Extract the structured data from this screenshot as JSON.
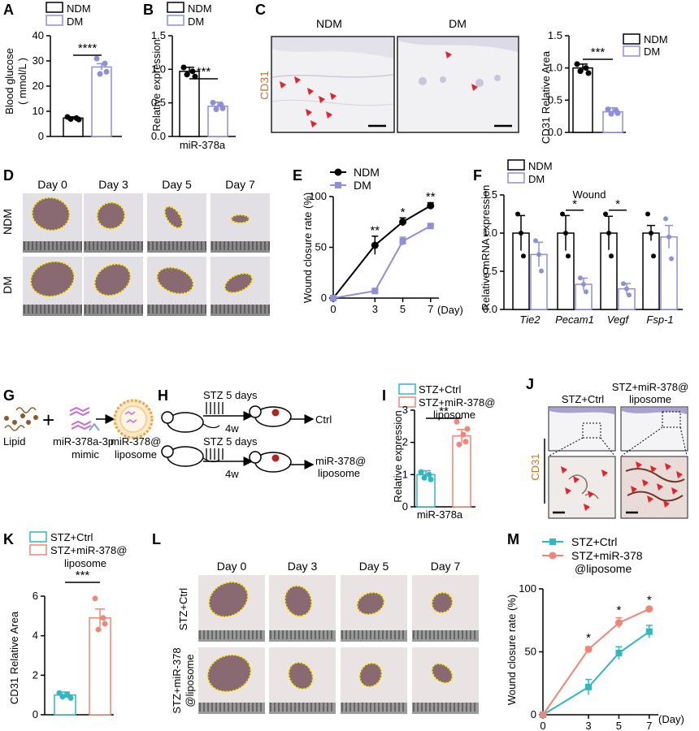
{
  "panels": {
    "A": "A",
    "B": "B",
    "C": "C",
    "D": "D",
    "E": "E",
    "F": "F",
    "G": "G",
    "H": "H",
    "I": "I",
    "J": "J",
    "K": "K",
    "L": "L",
    "M": "M"
  },
  "colors": {
    "ndm": "#000000",
    "dm": "#8e8fd6",
    "ctrl": "#2fb8bf",
    "mir": "#f08677",
    "cd31": "#c8742a",
    "arrow": "#e3232c",
    "border": "#fff200"
  },
  "legend": {
    "ndm": "NDM",
    "dm": "DM",
    "ctrl": "STZ+Ctrl",
    "mir_a": "STZ+miR-378@",
    "mir_b": "liposome",
    "mirM_a": "STZ+miR-378",
    "mirM_b": "@liposome"
  },
  "panelA": {
    "ylabel_a": "Blood glucose",
    "ylabel_b": "( mmol/L )",
    "sig": "****"
  },
  "panelB": {
    "ylabel": "Relative expression",
    "xlabel": "miR-378a",
    "sig": "***"
  },
  "panelC": {
    "col1": "NDM",
    "col2": "DM",
    "stain": "CD31",
    "ylabel": "CD31 Relative Area",
    "sig": "***"
  },
  "panelD": {
    "days": [
      "Day 0",
      "Day 3",
      "Day 5",
      "Day 7"
    ],
    "rows": [
      "NDM",
      "DM"
    ]
  },
  "panelE": {
    "ylabel": "Wound closure rate  (%)",
    "xunit": "(Day)",
    "sigs": [
      "**",
      "*",
      "**"
    ]
  },
  "panelF": {
    "title": "Wound",
    "ylabel": "Relative mRNA expression",
    "sigs": [
      "*",
      "*"
    ]
  },
  "panelG": {
    "lipid": "Lipid",
    "plus": "+",
    "mimic_a": "miR-378a-3p",
    "mimic_b": "mimic",
    "lipo_a": "miR-378@",
    "lipo_b": "liposome"
  },
  "panelH": {
    "stz": "STZ 5 days",
    "time": "4w",
    "ctrl": "Ctrl",
    "mir_a": "miR-378@",
    "mir_b": "liposome"
  },
  "panelI": {
    "ylabel": "Relative expression",
    "xlabel": "miR-378a",
    "sig": "**"
  },
  "panelJ": {
    "col1": "STZ+Ctrl",
    "col2_a": "STZ+miR-378@",
    "col2_b": "liposome",
    "stain": "CD31"
  },
  "panelK": {
    "ylabel": "CD31 Relative Area",
    "sig": "***"
  },
  "panelL": {
    "days": [
      "Day 0",
      "Day 3",
      "Day 5",
      "Day 7"
    ],
    "row1": "STZ+Ctrl",
    "row2_a": "STZ+miR-378",
    "row2_b": "@liposome"
  },
  "panelM": {
    "ylabel": "Wound closure rate  (%)",
    "xunit": "(Day)",
    "sigs": [
      "*",
      "*",
      "*"
    ]
  },
  "chart_data": [
    {
      "panel": "A",
      "type": "bar",
      "categories": [
        "NDM",
        "DM"
      ],
      "values": [
        7.3,
        27.6
      ],
      "errors": [
        0.5,
        1.3
      ],
      "ylim": [
        0,
        40
      ],
      "yticks": [
        0,
        10,
        20,
        30,
        40
      ],
      "ylabel": "Blood glucose ( mmol/L )"
    },
    {
      "panel": "B",
      "type": "bar",
      "categories": [
        "NDM",
        "DM"
      ],
      "values": [
        0.97,
        0.45
      ],
      "errors": [
        0.06,
        0.06
      ],
      "ylim": [
        0,
        1.5
      ],
      "yticks": [
        0,
        0.5,
        1.0,
        1.5
      ],
      "ylabel": "Relative expression",
      "xlabel": "miR-378a"
    },
    {
      "panel": "C",
      "type": "bar",
      "categories": [
        "NDM",
        "DM"
      ],
      "values": [
        1.0,
        0.32
      ],
      "errors": [
        0.06,
        0.06
      ],
      "ylim": [
        0,
        1.5
      ],
      "yticks": [
        0,
        0.5,
        1.0,
        1.5
      ],
      "ylabel": "CD31 Relative Area"
    },
    {
      "panel": "E",
      "type": "line",
      "x": [
        0,
        3,
        5,
        7
      ],
      "xlim": [
        0,
        7.6
      ],
      "ylim": [
        0,
        100
      ],
      "yticks": [
        0,
        50,
        100
      ],
      "ylabel": "Wound closure rate (%)",
      "series": [
        {
          "name": "NDM",
          "values": [
            0,
            52,
            75,
            91
          ],
          "errors": [
            0,
            9,
            4,
            3
          ]
        },
        {
          "name": "DM",
          "values": [
            0,
            7,
            56,
            71
          ],
          "errors": [
            0,
            1,
            4,
            2
          ]
        }
      ]
    },
    {
      "panel": "F",
      "type": "bar",
      "categories": [
        "Tie2",
        "Pecam1",
        "Vegf",
        "Fsp-1"
      ],
      "ylim": [
        0,
        1.5
      ],
      "yticks": [
        0,
        0.5,
        1.0,
        1.5
      ],
      "ylabel": "Relative mRNA expression",
      "series": [
        {
          "name": "NDM",
          "values": [
            1.0,
            1.0,
            1.0,
            1.0
          ],
          "errors": [
            0.23,
            0.23,
            0.22,
            0.1
          ]
        },
        {
          "name": "DM",
          "values": [
            0.72,
            0.33,
            0.27,
            0.95
          ],
          "errors": [
            0.16,
            0.08,
            0.07,
            0.15
          ]
        }
      ]
    },
    {
      "panel": "I",
      "type": "bar",
      "categories": [
        "STZ+Ctrl",
        "STZ+miR-378@ liposome"
      ],
      "values": [
        1.0,
        2.2
      ],
      "errors": [
        0.12,
        0.2
      ],
      "ylim": [
        0,
        3
      ],
      "yticks": [
        0,
        1,
        2,
        3
      ],
      "ylabel": "Relative expression",
      "xlabel": "miR-378a"
    },
    {
      "panel": "K",
      "type": "bar",
      "categories": [
        "STZ+Ctrl",
        "STZ+miR-378@ liposome"
      ],
      "values": [
        1.0,
        4.9
      ],
      "errors": [
        0.15,
        0.45
      ],
      "ylim": [
        0,
        6
      ],
      "yticks": [
        0,
        2,
        4,
        6
      ],
      "ylabel": "CD31 Relative Area"
    },
    {
      "panel": "M",
      "type": "line",
      "x": [
        0,
        3,
        5,
        7
      ],
      "xlim": [
        0,
        7.6
      ],
      "ylim": [
        0,
        100
      ],
      "yticks": [
        0,
        50,
        100
      ],
      "ylabel": "Wound closure rate (%)",
      "series": [
        {
          "name": "STZ+Ctrl",
          "values": [
            0,
            22,
            49,
            66
          ],
          "errors": [
            0,
            6,
            5,
            5
          ]
        },
        {
          "name": "STZ+miR-378 @liposome",
          "values": [
            0,
            52,
            73,
            84
          ],
          "errors": [
            0,
            2,
            4,
            1
          ]
        }
      ]
    }
  ]
}
